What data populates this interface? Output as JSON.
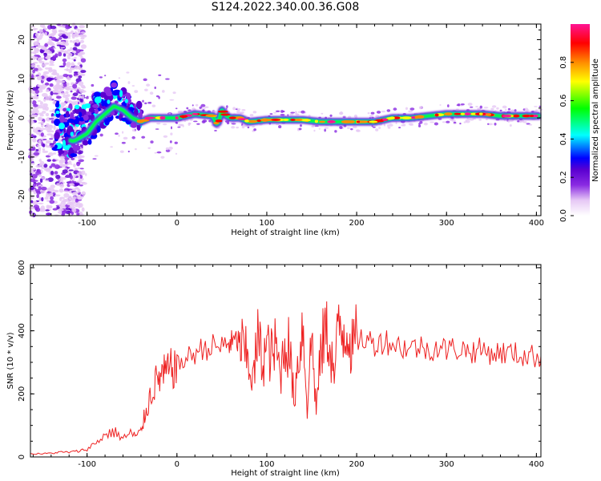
{
  "title": "S124.2022.340.00.36.G08",
  "chart_data": [
    {
      "type": "heatmap",
      "xlabel": "Height of straight line (km)",
      "ylabel": "Frequency (Hz)",
      "xlim": [
        -163,
        405
      ],
      "ylim": [
        -25,
        24
      ],
      "x_ticks": [
        -100,
        0,
        100,
        200,
        300,
        400
      ],
      "y_ticks": [
        20,
        10,
        0,
        -10,
        -20
      ],
      "colorbar": {
        "label": "Normalized spectral amplitude",
        "range": [
          0,
          1
        ],
        "ticks": [
          0.0,
          0.2,
          0.4,
          0.6,
          0.8
        ],
        "colormap": [
          "#ffffff",
          "#e6c8f5",
          "#8a2be2",
          "#5a00d0",
          "#0000ff",
          "#00ffff",
          "#00ff00",
          "#ffff00",
          "#ff8c00",
          "#ff0000",
          "#ff1493"
        ]
      },
      "ridge": {
        "x": [
          -150,
          -130,
          -115,
          -100,
          -90,
          -80,
          -70,
          -60,
          -50,
          -40,
          -30,
          -20,
          0,
          20,
          40,
          45,
          50,
          55,
          60,
          70,
          80,
          100,
          120,
          140,
          160,
          180,
          200,
          220,
          230,
          240,
          260,
          280,
          300,
          320,
          340,
          360,
          380,
          405
        ],
        "y": [
          -4,
          -5,
          -6,
          -4,
          -1,
          1,
          3,
          2,
          0,
          -1,
          0,
          0,
          0,
          1,
          0.5,
          -2,
          2,
          0.5,
          0,
          0,
          -1,
          -0.5,
          -0.5,
          -0.5,
          -1,
          -1,
          -1,
          -1,
          -0.5,
          0,
          0,
          0.5,
          1,
          1,
          1,
          0.5,
          0.5,
          0.5
        ]
      }
    },
    {
      "type": "line",
      "xlabel": "Height of straight line (km)",
      "ylabel": "SNR (10 * v/v)",
      "xlim": [
        -163,
        405
      ],
      "ylim": [
        0,
        610
      ],
      "x_ticks": [
        -100,
        0,
        100,
        200,
        300,
        400
      ],
      "y_ticks": [
        0,
        200,
        400,
        600
      ],
      "series": [
        {
          "color": "#ee2222",
          "x": [
            -163,
            -150,
            -140,
            -130,
            -120,
            -110,
            -100,
            -90,
            -80,
            -70,
            -60,
            -50,
            -45,
            -40,
            -35,
            -30,
            -25,
            -20,
            -15,
            -10,
            -5,
            0,
            10,
            20,
            30,
            40,
            50,
            55,
            60,
            65,
            70,
            75,
            80,
            85,
            90,
            95,
            100,
            105,
            110,
            115,
            120,
            125,
            130,
            135,
            140,
            145,
            150,
            155,
            160,
            165,
            170,
            175,
            180,
            185,
            190,
            195,
            200,
            210,
            220,
            230,
            240,
            250,
            260,
            270,
            280,
            290,
            300,
            310,
            320,
            330,
            340,
            350,
            360,
            370,
            380,
            390,
            400,
            405
          ],
          "y": [
            10,
            10,
            12,
            15,
            15,
            18,
            25,
            45,
            70,
            80,
            60,
            75,
            65,
            80,
            140,
            190,
            230,
            250,
            260,
            270,
            280,
            290,
            310,
            330,
            345,
            350,
            350,
            360,
            360,
            365,
            370,
            330,
            300,
            240,
            380,
            300,
            350,
            320,
            350,
            260,
            360,
            350,
            180,
            310,
            420,
            160,
            390,
            150,
            320,
            410,
            360,
            250,
            420,
            400,
            410,
            340,
            380,
            370,
            360,
            370,
            360,
            350,
            345,
            350,
            340,
            350,
            340,
            345,
            340,
            335,
            340,
            330,
            330,
            330,
            325,
            320,
            320,
            320
          ]
        }
      ]
    }
  ]
}
